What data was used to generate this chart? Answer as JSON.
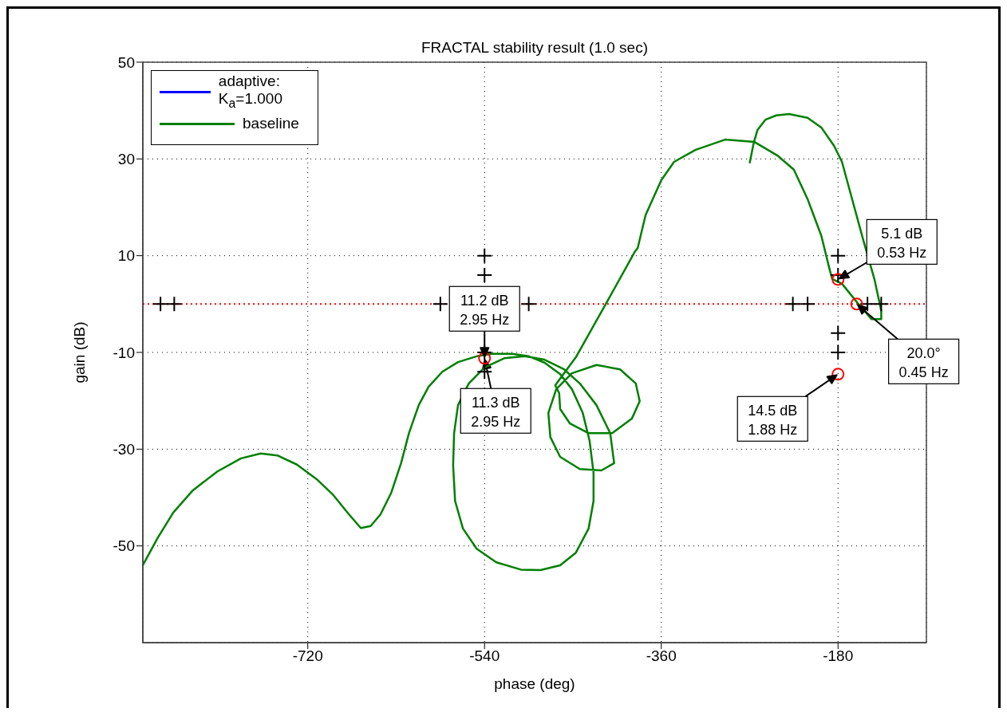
{
  "chart_data": {
    "type": "line",
    "title": "FRACTAL stability result (1.0 sec)",
    "xlabel": "phase (deg)",
    "ylabel": "gain (dB)",
    "xlim": [
      -888,
      -90
    ],
    "ylim": [
      -70,
      50
    ],
    "xticks": [
      -720,
      -540,
      -360,
      -180
    ],
    "yticks": [
      50,
      30,
      10,
      -10,
      -30,
      -50
    ],
    "grid": true,
    "legend": "top left",
    "line_style": "solid",
    "ref_lines": [
      {
        "axis": "y",
        "value": 0,
        "color": "#ff0000",
        "line_style": "dotted"
      }
    ],
    "series": [
      {
        "name": "adaptive: K$_{a}$=1.000",
        "color": "#0000ff",
        "type": "line",
        "marker": "none"
      },
      {
        "name": "baseline",
        "color": "#008000",
        "type": "line",
        "marker": "none",
        "x": [
          -888,
          -873,
          -857,
          -837,
          -812,
          -788,
          -768,
          -751,
          -731,
          -711,
          -694,
          -678,
          -666,
          -656,
          -646,
          -635,
          -625,
          -617,
          -607,
          -597,
          -583,
          -567,
          -548,
          -532,
          -512,
          -495,
          -479,
          -463,
          -451,
          -440,
          -433,
          -429,
          -429,
          -434,
          -447,
          -463,
          -483,
          -503,
          -528,
          -548,
          -562,
          -570,
          -572,
          -571,
          -567,
          -556,
          -540,
          -520,
          -499,
          -479,
          -459,
          -443,
          -426,
          -412,
          -408,
          -421,
          -443,
          -463,
          -473,
          -475,
          -467,
          -451,
          -426,
          -402,
          -386,
          -382,
          -390,
          -410,
          -434,
          -453,
          -463,
          -464,
          -468,
          -447,
          -416,
          -387,
          -384,
          -376,
          -360,
          -347,
          -325,
          -295,
          -265,
          -241,
          -225,
          -211,
          -197,
          -189,
          -186,
          -176,
          -160,
          -146,
          -136,
          -136,
          -143,
          -154,
          -165,
          -176,
          -184,
          -197,
          -211,
          -230,
          -243,
          -254,
          -262,
          -266,
          -270
        ],
        "values": [
          -54,
          -48.4,
          -43.1,
          -38.5,
          -34.6,
          -31.9,
          -30.9,
          -31.3,
          -33.2,
          -36.2,
          -39.5,
          -43.5,
          -46.3,
          -45.9,
          -43.5,
          -39,
          -32.9,
          -26.7,
          -20.9,
          -17.1,
          -14,
          -12,
          -10.8,
          -10.3,
          -10.3,
          -10.8,
          -12.1,
          -14.5,
          -17.6,
          -22.5,
          -28.3,
          -34.9,
          -40.7,
          -46.4,
          -51.4,
          -54,
          -55,
          -54.9,
          -53.4,
          -50.6,
          -46.4,
          -40.7,
          -33.3,
          -26.7,
          -20.9,
          -16.4,
          -13.1,
          -11.2,
          -10.8,
          -11.5,
          -13.5,
          -16.4,
          -20.9,
          -26.7,
          -32.9,
          -34.4,
          -34.1,
          -31.6,
          -27.5,
          -22.5,
          -17.6,
          -14.3,
          -12.6,
          -13.5,
          -16.4,
          -20.1,
          -23.7,
          -26.7,
          -26.7,
          -24.7,
          -21.7,
          -18.4,
          -16.8,
          -11,
          0.2,
          10.8,
          11.6,
          18.4,
          25.6,
          29.4,
          31.9,
          34,
          33.5,
          30.6,
          27.8,
          21.7,
          14.1,
          7.5,
          5.2,
          4.2,
          0.2,
          -3.1,
          -3.1,
          -1.4,
          5.2,
          13,
          21.2,
          29.4,
          32.7,
          36.5,
          38.5,
          39.3,
          39,
          38.1,
          36,
          33.2,
          29.1
        ]
      },
      {
        "color": "#000000",
        "type": "scatter",
        "marker": "cross",
        "x": [
          -870,
          -856,
          -585,
          -495,
          -540,
          -540,
          -540,
          -540,
          -226,
          -211,
          -150,
          -136,
          -180,
          -180,
          -180,
          -180
        ],
        "values": [
          0,
          0,
          0,
          0,
          10,
          6,
          -10,
          -14,
          0,
          0,
          0,
          0,
          10,
          6,
          -6,
          -10
        ]
      },
      {
        "color": "#ff0000",
        "type": "scatter",
        "marker": "circle",
        "x": [
          -540,
          -180,
          -161,
          -180
        ],
        "values": [
          -11.2,
          5.1,
          0,
          -14.5
        ]
      }
    ],
    "annotations": [
      {
        "text": "11.2 dB\n2.95 Hz",
        "x": -540,
        "y": -11.2
      },
      {
        "text": "11.3 dB\n2.95 Hz",
        "x": -540,
        "y": -11.2
      },
      {
        "text": "5.1 dB\n0.53 Hz",
        "x": -180,
        "y": 5.1
      },
      {
        "text": "20.0°\n0.45 Hz",
        "x": -161,
        "y": 0
      },
      {
        "text": "14.5 dB\n1.88 Hz",
        "x": -180,
        "y": -14.5
      }
    ]
  }
}
